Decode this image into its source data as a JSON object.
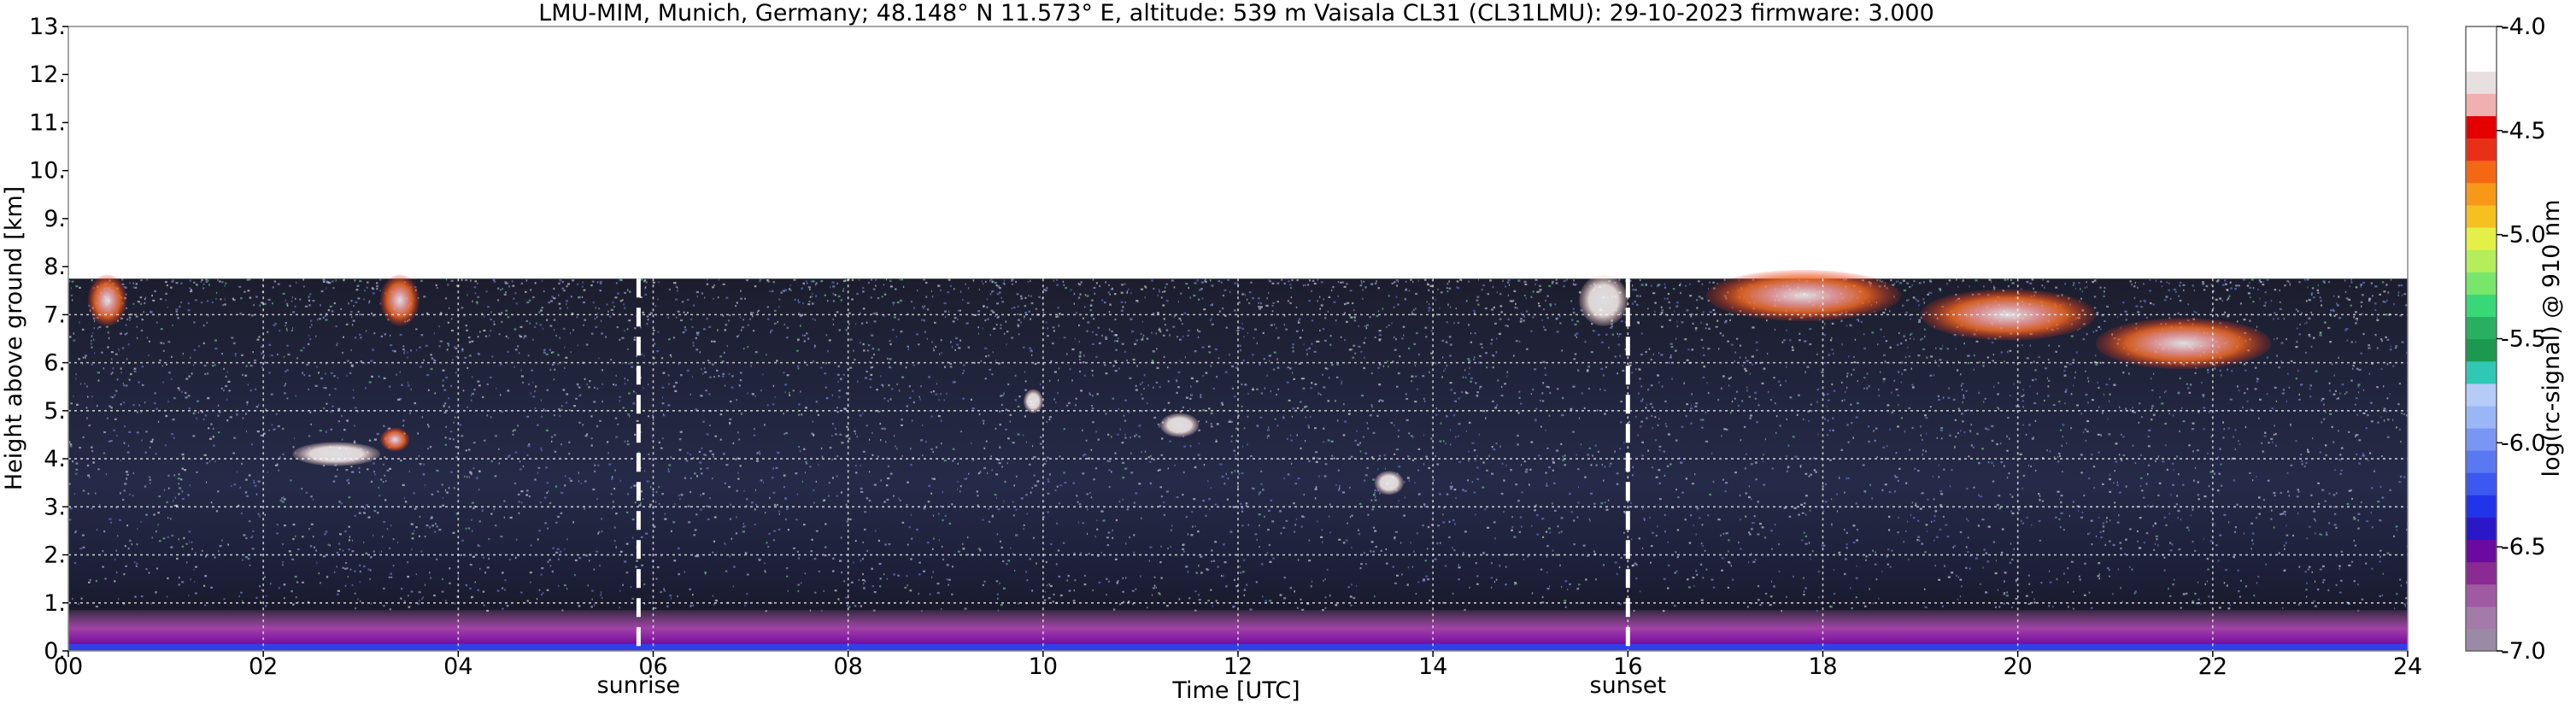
{
  "chart_data": {
    "type": "heatmap",
    "title": "LMU-MIM, Munich, Germany; 48.148° N 11.573° E, altitude: 539 m    Vaisala CL31 (CL31LMU): 29-10-2023    firmware: 3.000",
    "xlabel": "Time [UTC]",
    "ylabel": "Height above ground [km]",
    "xlim": [
      0,
      24
    ],
    "ylim": [
      0,
      13
    ],
    "x_tick_labels": [
      "00",
      "02",
      "04",
      "06",
      "08",
      "10",
      "12",
      "14",
      "16",
      "18",
      "20",
      "22",
      "24"
    ],
    "y_tick_labels": [
      "0.",
      "1.",
      "2.",
      "3.",
      "4.",
      "5.",
      "6.",
      "7.",
      "8.",
      "9.",
      "10.",
      "11.",
      "12.",
      "13."
    ],
    "grid": true,
    "data_top_km": 7.75,
    "vertical_markers": [
      {
        "label": "sunrise",
        "time_h": 5.85
      },
      {
        "label": "sunset",
        "time_h": 16.0
      }
    ],
    "colorbar": {
      "label": "log(rc-signal) @ 910 nm",
      "range": [
        -7.0,
        -4.0
      ],
      "tick_labels": [
        "-7.0",
        "-6.5",
        "-6.0",
        "-5.5",
        "-5.0",
        "-4.5",
        "-4.0"
      ],
      "colors": [
        "#9a8aa6",
        "#a47aa8",
        "#a05aa2",
        "#8a2a92",
        "#6a0aa0",
        "#2a18c8",
        "#2234e8",
        "#3d58f0",
        "#5a78f2",
        "#7a96f4",
        "#9ab6f6",
        "#b6ccf8",
        "#30c8b4",
        "#1c9850",
        "#28b060",
        "#38d878",
        "#78e66a",
        "#b4ee5a",
        "#e4f048",
        "#f6c020",
        "#f89818",
        "#f46814",
        "#e83018",
        "#e40000",
        "#f0b0b0",
        "#e8e0e0",
        "#ffffff",
        "#ffffff"
      ]
    },
    "cloud_features": [
      {
        "t_start": 2.3,
        "t_end": 3.2,
        "h_km": 4.1,
        "level": -4.6
      },
      {
        "t_start": 3.2,
        "t_end": 3.5,
        "h_km": 4.4,
        "level": -5.6
      },
      {
        "t_start": 9.8,
        "t_end": 10.0,
        "h_km": 5.2,
        "level": -4.5
      },
      {
        "t_start": 11.2,
        "t_end": 11.6,
        "h_km": 4.7,
        "level": -4.4
      },
      {
        "t_start": 13.4,
        "t_end": 13.7,
        "h_km": 3.5,
        "level": -4.4
      },
      {
        "t_start": 15.5,
        "t_end": 16.0,
        "h_km": 7.3,
        "level": -4.5
      },
      {
        "t_start": 16.8,
        "t_end": 18.8,
        "h_km": 7.4,
        "level": -4.7
      },
      {
        "t_start": 19.0,
        "t_end": 20.8,
        "h_km": 7.0,
        "level": -4.9
      },
      {
        "t_start": 20.8,
        "t_end": 22.6,
        "h_km": 6.4,
        "level": -4.9
      },
      {
        "t_start": 0.2,
        "t_end": 0.6,
        "h_km": 7.3,
        "level": -4.8
      },
      {
        "t_start": 3.2,
        "t_end": 3.6,
        "h_km": 7.3,
        "level": -4.8
      }
    ]
  }
}
